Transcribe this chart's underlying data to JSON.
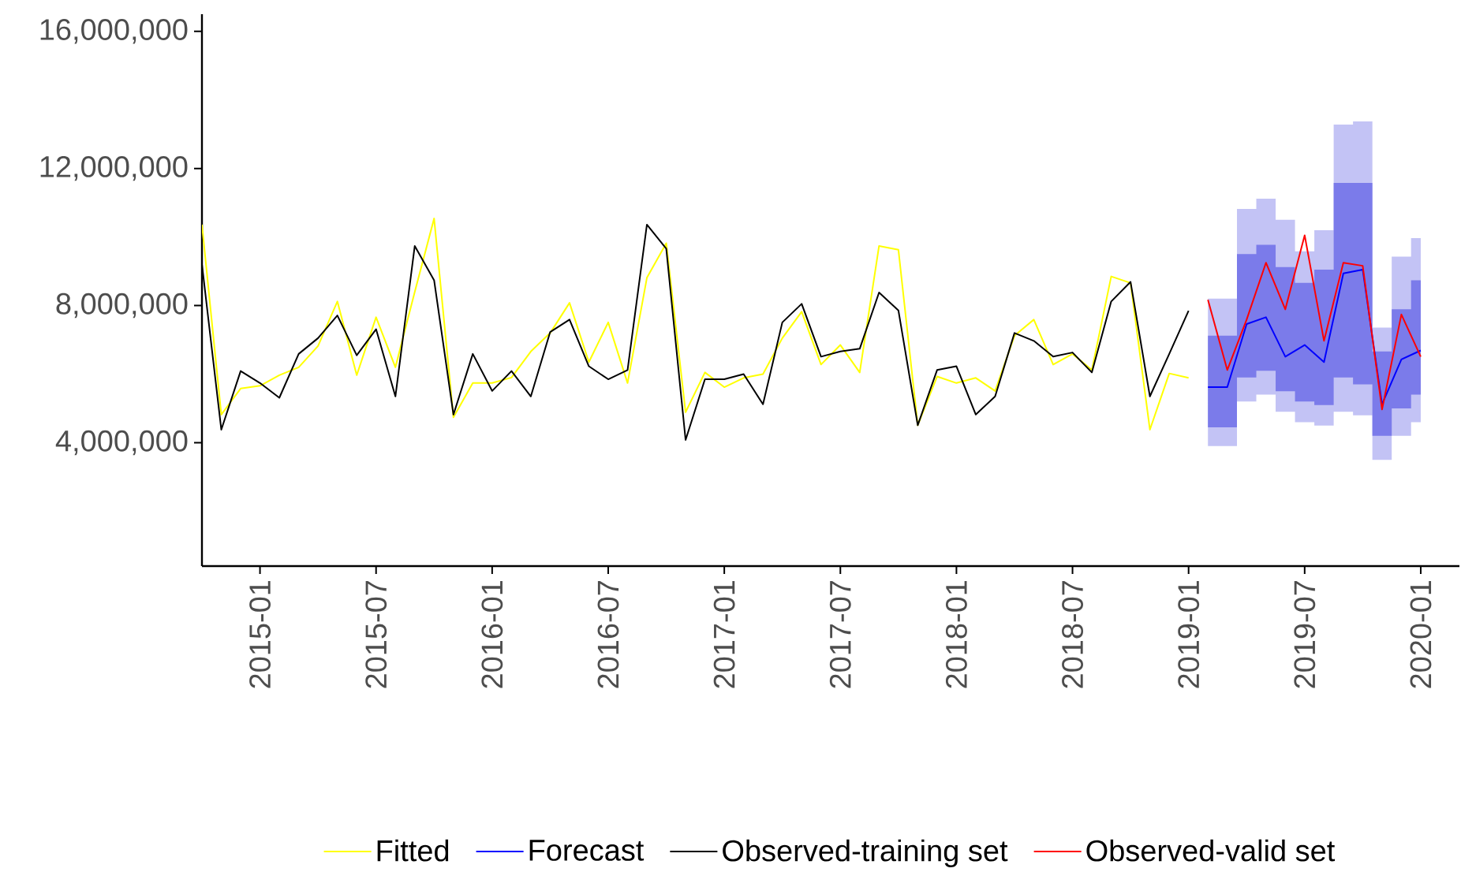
{
  "chart_data": {
    "type": "line",
    "xlim": [
      "2014-10",
      "2020-03"
    ],
    "ylim": [
      400000,
      16500000
    ],
    "xticks": [
      "2015-01",
      "2015-07",
      "2016-01",
      "2016-07",
      "2017-01",
      "2017-07",
      "2018-01",
      "2018-07",
      "2019-01",
      "2019-07",
      "2020-01"
    ],
    "yticks": [
      {
        "value": 4000000,
        "label": "4,000,000"
      },
      {
        "value": 8000000,
        "label": "8,000,000"
      },
      {
        "value": 12000000,
        "label": "12,000,000"
      },
      {
        "value": 16000000,
        "label": "16,000,000"
      }
    ],
    "legend": "bottom",
    "series": [
      {
        "type": "area",
        "color": "#c3c3f5",
        "x": [
          "2019-02",
          "2019-03",
          "2019-04",
          "2019-05",
          "2019-06",
          "2019-07",
          "2019-08",
          "2019-09",
          "2019-10",
          "2019-11",
          "2019-12",
          "2020-01"
        ],
        "values": [
          null,
          null,
          null,
          null,
          null,
          null,
          null,
          null,
          null,
          null,
          null,
          null
        ],
        "lower": [
          3900000,
          3900000,
          5200000,
          5400000,
          4900000,
          4600000,
          4500000,
          4900000,
          4800000,
          3500000,
          4200000,
          4600000
        ],
        "upper": [
          8200000,
          8200000,
          10820000,
          11120000,
          10500000,
          9580000,
          10200000,
          13280000,
          13370000,
          7360000,
          9430000,
          9970000
        ]
      },
      {
        "type": "area",
        "color": "#7b7bea",
        "x": [
          "2019-02",
          "2019-03",
          "2019-04",
          "2019-05",
          "2019-06",
          "2019-07",
          "2019-08",
          "2019-09",
          "2019-10",
          "2019-11",
          "2019-12",
          "2020-01"
        ],
        "values": [
          null,
          null,
          null,
          null,
          null,
          null,
          null,
          null,
          null,
          null,
          null,
          null
        ],
        "lower": [
          4450000,
          4450000,
          5900000,
          6100000,
          5500000,
          5200000,
          5100000,
          5900000,
          5700000,
          4200000,
          5000000,
          5400000
        ],
        "upper": [
          7120000,
          7120000,
          9500000,
          9770000,
          9120000,
          8660000,
          9050000,
          11580000,
          11580000,
          6660000,
          7890000,
          8740000
        ]
      },
      {
        "name": "Fitted",
        "color": "#ffff00",
        "x": [
          "2014-10",
          "2014-11",
          "2014-12",
          "2015-01",
          "2015-02",
          "2015-03",
          "2015-04",
          "2015-05",
          "2015-06",
          "2015-07",
          "2015-08",
          "2015-09",
          "2015-10",
          "2015-11",
          "2015-12",
          "2016-01",
          "2016-02",
          "2016-03",
          "2016-04",
          "2016-05",
          "2016-06",
          "2016-07",
          "2016-08",
          "2016-09",
          "2016-10",
          "2016-11",
          "2016-12",
          "2017-01",
          "2017-02",
          "2017-03",
          "2017-04",
          "2017-05",
          "2017-06",
          "2017-07",
          "2017-08",
          "2017-09",
          "2017-10",
          "2017-11",
          "2017-12",
          "2018-01",
          "2018-02",
          "2018-03",
          "2018-04",
          "2018-05",
          "2018-06",
          "2018-07",
          "2018-08",
          "2018-09",
          "2018-10",
          "2018-11",
          "2018-12",
          "2019-01"
        ],
        "values": [
          10360000,
          4820000,
          5580000,
          5660000,
          5970000,
          6200000,
          6820000,
          8120000,
          5970000,
          7660000,
          6200000,
          8400000,
          10540000,
          4740000,
          5740000,
          5740000,
          5900000,
          6660000,
          7200000,
          8080000,
          6350000,
          7510000,
          5740000,
          8810000,
          9820000,
          4890000,
          6050000,
          5620000,
          5890000,
          6000000,
          7050000,
          7820000,
          6280000,
          6850000,
          6050000,
          9740000,
          9630000,
          4510000,
          5930000,
          5740000,
          5890000,
          5510000,
          7120000,
          7590000,
          6280000,
          6590000,
          6120000,
          8850000,
          8660000,
          4380000,
          6020000,
          5890000
        ]
      },
      {
        "name": "Forecast",
        "color": "#0000ff",
        "x": [
          "2019-02",
          "2019-03",
          "2019-04",
          "2019-05",
          "2019-06",
          "2019-07",
          "2019-08",
          "2019-09",
          "2019-10",
          "2019-11",
          "2019-12",
          "2020-01"
        ],
        "values": [
          5620000,
          5620000,
          7460000,
          7660000,
          6510000,
          6850000,
          6350000,
          8940000,
          9050000,
          5120000,
          6430000,
          6690000
        ]
      },
      {
        "name": "Observed-training set",
        "color": "#000000",
        "x": [
          "2014-10",
          "2014-11",
          "2014-12",
          "2015-01",
          "2015-02",
          "2015-03",
          "2015-04",
          "2015-05",
          "2015-06",
          "2015-07",
          "2015-08",
          "2015-09",
          "2015-10",
          "2015-11",
          "2015-12",
          "2016-01",
          "2016-02",
          "2016-03",
          "2016-04",
          "2016-05",
          "2016-06",
          "2016-07",
          "2016-08",
          "2016-09",
          "2016-10",
          "2016-11",
          "2016-12",
          "2017-01",
          "2017-02",
          "2017-03",
          "2017-04",
          "2017-05",
          "2017-06",
          "2017-07",
          "2017-08",
          "2017-09",
          "2017-10",
          "2017-11",
          "2017-12",
          "2018-01",
          "2018-02",
          "2018-03",
          "2018-04",
          "2018-05",
          "2018-06",
          "2018-07",
          "2018-08",
          "2018-09",
          "2018-10",
          "2018-11",
          "2018-12",
          "2019-01"
        ],
        "values": [
          9200000,
          4380000,
          6090000,
          5740000,
          5310000,
          6590000,
          7050000,
          7710000,
          6550000,
          7310000,
          5350000,
          9740000,
          8740000,
          4820000,
          6590000,
          5510000,
          6090000,
          5350000,
          7230000,
          7590000,
          6230000,
          5850000,
          6120000,
          10360000,
          9660000,
          4080000,
          5850000,
          5850000,
          6000000,
          5120000,
          7510000,
          8050000,
          6510000,
          6660000,
          6740000,
          8380000,
          7860000,
          4510000,
          6120000,
          6230000,
          4820000,
          5350000,
          7200000,
          6970000,
          6510000,
          6630000,
          6050000,
          8120000,
          8690000,
          5350000,
          6590000,
          7850000
        ]
      },
      {
        "name": "Observed-valid set",
        "color": "#ff0000",
        "x": [
          "2019-02",
          "2019-03",
          "2019-04",
          "2019-05",
          "2019-06",
          "2019-07",
          "2019-08",
          "2019-09",
          "2019-10",
          "2019-11",
          "2019-12",
          "2020-01"
        ],
        "values": [
          8170000,
          6120000,
          7590000,
          9250000,
          7890000,
          10050000,
          6970000,
          9250000,
          9160000,
          4970000,
          7740000,
          6510000
        ]
      }
    ]
  }
}
